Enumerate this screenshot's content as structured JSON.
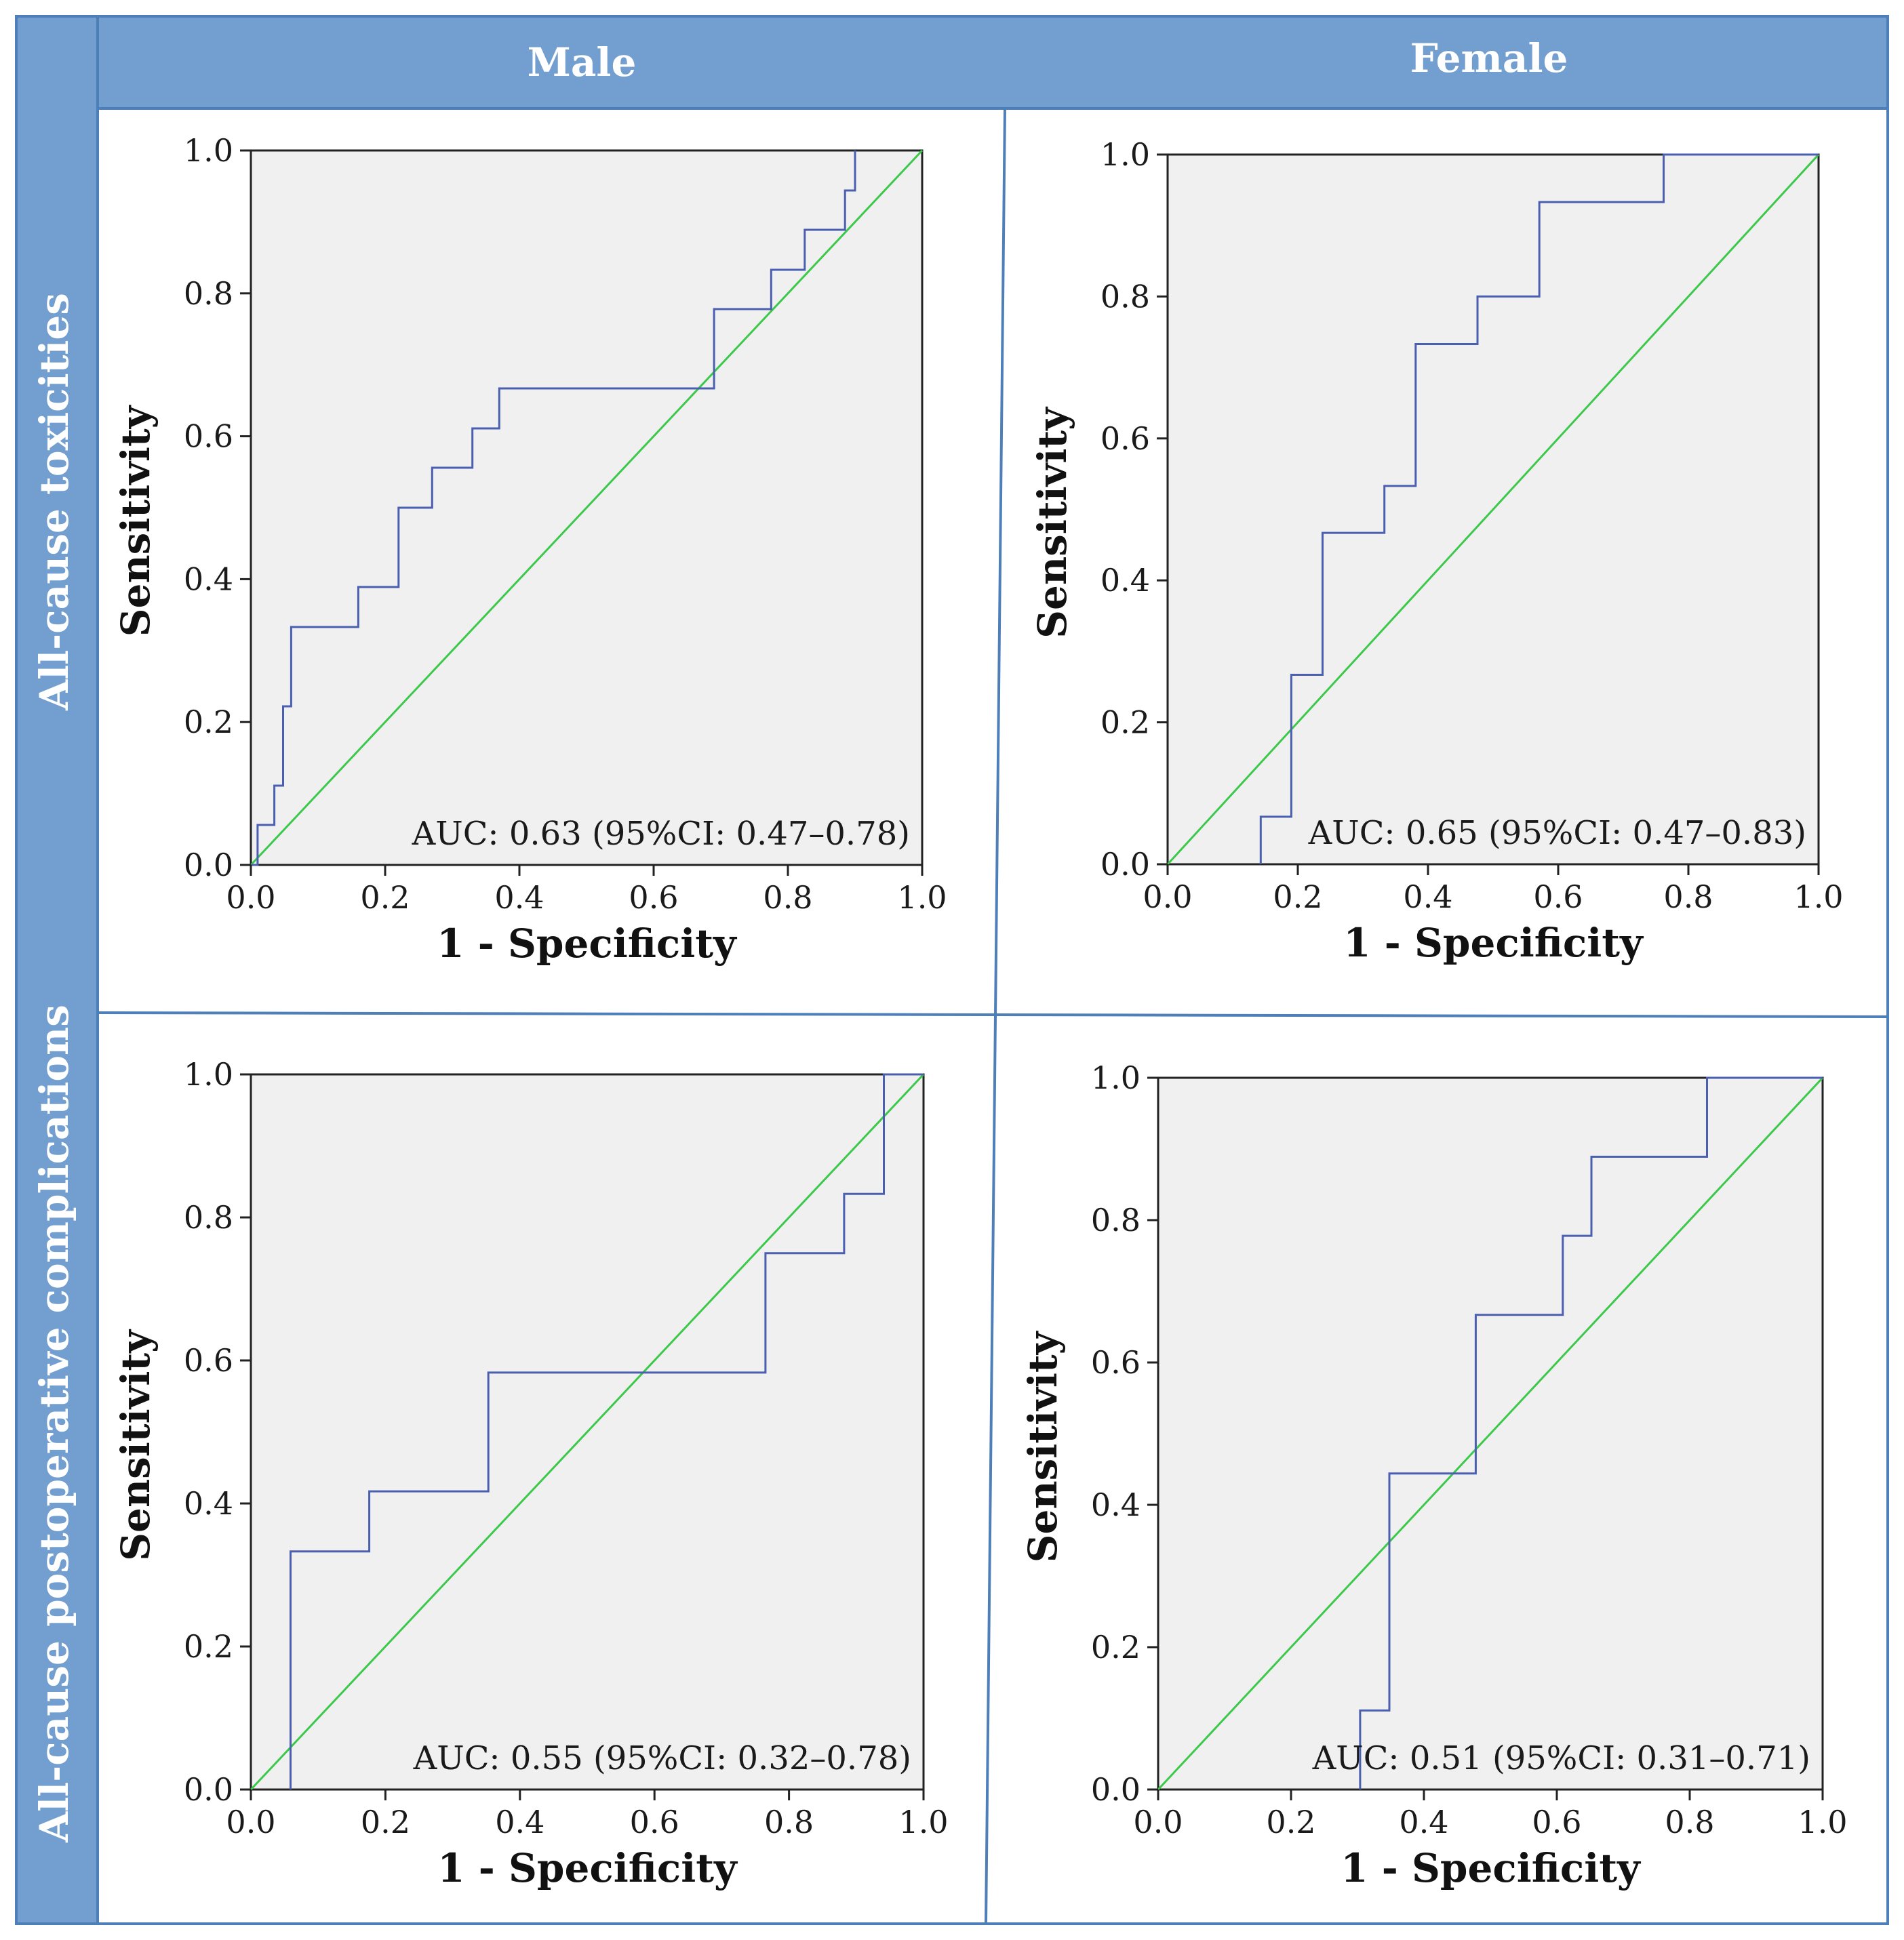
{
  "headers": {
    "columns": [
      "Male",
      "Female"
    ],
    "rows": [
      "All-cause toxicities",
      "All-cause postoperative complications"
    ]
  },
  "colors": {
    "header_bg": "#739fd0",
    "header_border": "#4f7fb8",
    "grid_line": "#4f7fb8",
    "plot_bg": "#f0f0f0",
    "roc_line": "#4a5fb0",
    "reference_line": "#3cc84a"
  },
  "chart_data": [
    {
      "type": "line",
      "panel": "Male / All-cause toxicities",
      "xlabel": "1 - Specificity",
      "ylabel": "Sensitivity",
      "xlim": [
        0,
        1
      ],
      "ylim": [
        0,
        1
      ],
      "xticks": [
        "0.0",
        "0.2",
        "0.4",
        "0.6",
        "0.8",
        "1.0"
      ],
      "yticks": [
        "0.0",
        "0.2",
        "0.4",
        "0.6",
        "0.8",
        "1.0"
      ],
      "annotation": "AUC: 0.63 (95%CI: 0.47–0.78)",
      "series": [
        {
          "name": "ROC",
          "x": [
            0.0,
            0.01,
            0.01,
            0.035,
            0.035,
            0.048,
            0.048,
            0.06,
            0.06,
            0.16,
            0.16,
            0.22,
            0.22,
            0.27,
            0.27,
            0.33,
            0.33,
            0.37,
            0.37,
            0.69,
            0.69,
            0.775,
            0.775,
            0.825,
            0.825,
            0.885,
            0.885,
            0.9,
            0.9
          ],
          "y": [
            0.0,
            0.0,
            0.056,
            0.056,
            0.111,
            0.111,
            0.222,
            0.222,
            0.333,
            0.333,
            0.389,
            0.389,
            0.5,
            0.5,
            0.556,
            0.556,
            0.611,
            0.611,
            0.667,
            0.667,
            0.778,
            0.778,
            0.833,
            0.833,
            0.889,
            0.889,
            0.944,
            0.944,
            1.0
          ]
        },
        {
          "name": "Reference",
          "x": [
            0,
            1
          ],
          "y": [
            0,
            1
          ]
        }
      ]
    },
    {
      "type": "line",
      "panel": "Female / All-cause toxicities",
      "xlabel": "1 - Specificity",
      "ylabel": "Sensitivity",
      "xlim": [
        0,
        1
      ],
      "ylim": [
        0,
        1
      ],
      "xticks": [
        "0.0",
        "0.2",
        "0.4",
        "0.6",
        "0.8",
        "1.0"
      ],
      "yticks": [
        "0.0",
        "0.2",
        "0.4",
        "0.6",
        "0.8",
        "1.0"
      ],
      "annotation": "AUC: 0.65 (95%CI: 0.47–0.83)",
      "series": [
        {
          "name": "ROC",
          "x": [
            0.143,
            0.143,
            0.19,
            0.19,
            0.238,
            0.238,
            0.333,
            0.333,
            0.381,
            0.381,
            0.476,
            0.476,
            0.571,
            0.571,
            0.762,
            0.762,
            1.0
          ],
          "y": [
            0.0,
            0.067,
            0.067,
            0.267,
            0.267,
            0.467,
            0.467,
            0.533,
            0.533,
            0.733,
            0.733,
            0.8,
            0.8,
            0.933,
            0.933,
            1.0,
            1.0
          ]
        },
        {
          "name": "Reference",
          "x": [
            0,
            1
          ],
          "y": [
            0,
            1
          ]
        }
      ]
    },
    {
      "type": "line",
      "panel": "Male / All-cause postoperative complications",
      "xlabel": "1 - Specificity",
      "ylabel": "Sensitivity",
      "xlim": [
        0,
        1
      ],
      "ylim": [
        0,
        1
      ],
      "xticks": [
        "0.0",
        "0.2",
        "0.4",
        "0.6",
        "0.8",
        "1.0"
      ],
      "yticks": [
        "0.0",
        "0.2",
        "0.4",
        "0.6",
        "0.8",
        "1.0"
      ],
      "annotation": "AUC: 0.55 (95%CI: 0.32–0.78)",
      "series": [
        {
          "name": "ROC",
          "x": [
            0.059,
            0.059,
            0.176,
            0.176,
            0.353,
            0.353,
            0.765,
            0.765,
            0.882,
            0.882,
            0.941,
            0.941,
            1.0
          ],
          "y": [
            0.0,
            0.333,
            0.333,
            0.417,
            0.417,
            0.583,
            0.583,
            0.75,
            0.75,
            0.833,
            0.833,
            1.0,
            1.0
          ]
        },
        {
          "name": "Reference",
          "x": [
            0,
            1
          ],
          "y": [
            0,
            1
          ]
        }
      ]
    },
    {
      "type": "line",
      "panel": "Female / All-cause postoperative complications",
      "xlabel": "1 - Specificity",
      "ylabel": "Sensitivity",
      "xlim": [
        0,
        1
      ],
      "ylim": [
        0,
        1
      ],
      "xticks": [
        "0.0",
        "0.2",
        "0.4",
        "0.6",
        "0.8",
        "1.0"
      ],
      "yticks": [
        "0.0",
        "0.2",
        "0.4",
        "0.6",
        "0.8",
        "1.0"
      ],
      "annotation": "AUC: 0.51 (95%CI: 0.31–0.71)",
      "series": [
        {
          "name": "ROC",
          "x": [
            0.304,
            0.304,
            0.348,
            0.348,
            0.478,
            0.478,
            0.609,
            0.609,
            0.652,
            0.652,
            0.826,
            0.826,
            1.0
          ],
          "y": [
            0.0,
            0.111,
            0.111,
            0.444,
            0.444,
            0.667,
            0.667,
            0.778,
            0.778,
            0.889,
            0.889,
            1.0,
            1.0
          ]
        },
        {
          "name": "Reference",
          "x": [
            0,
            1
          ],
          "y": [
            0,
            1
          ]
        }
      ]
    }
  ]
}
